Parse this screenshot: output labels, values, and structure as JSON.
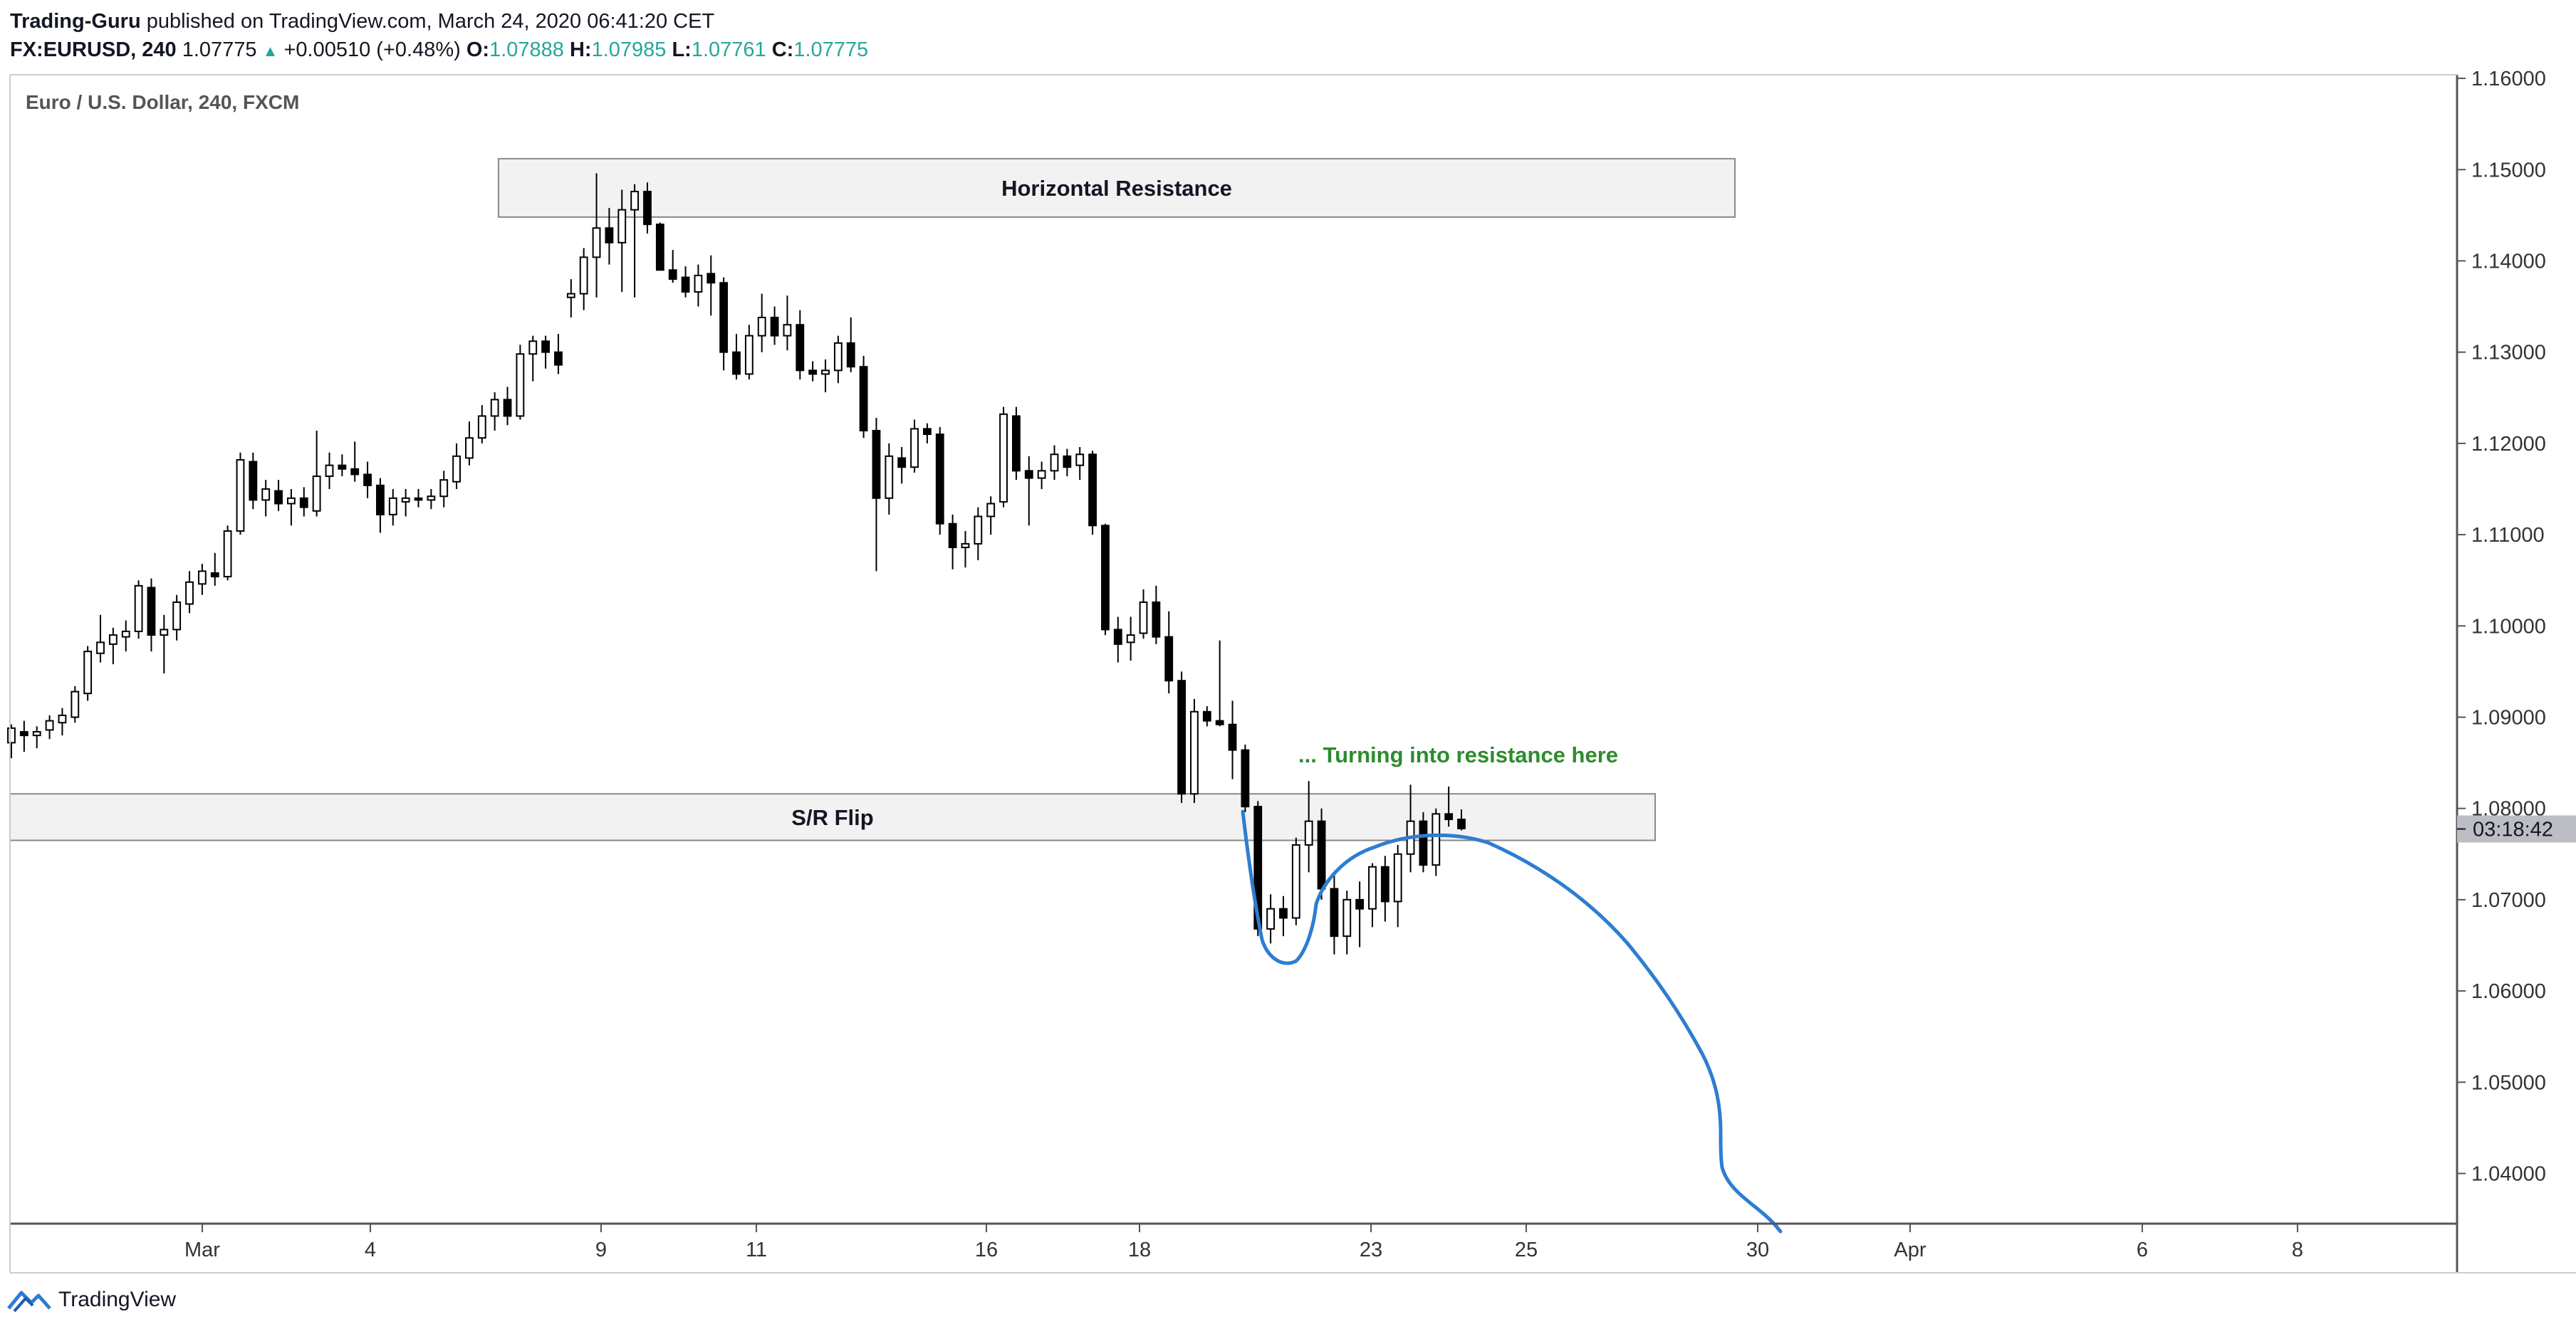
{
  "header": {
    "author": "Trading-Guru",
    "published": " published on TradingView.com, March 24, 2020 06:41:20 CET",
    "symbol": "FX:EURUSD, 240",
    "last": "1.07775",
    "change": "+0.00510 (+0.48%)",
    "o_label": "O:",
    "o_value": "1.07888",
    "h_label": "H:",
    "h_value": "1.07985",
    "l_label": "L:",
    "l_value": "1.07761",
    "c_label": "C:",
    "c_value": "1.07775"
  },
  "footer": {
    "brand": "TradingView"
  },
  "chart_data": {
    "type": "candlestick",
    "title": "Euro / U.S. Dollar, 240, FXCM",
    "ylim": [
      1.0345,
      1.1625
    ],
    "y_ticks": [
      "1.16000",
      "1.15000",
      "1.14000",
      "1.13000",
      "1.12000",
      "1.11000",
      "1.10000",
      "1.09000",
      "1.08000",
      "1.07000",
      "1.06000",
      "1.05000",
      "1.04000"
    ],
    "x_ticks": [
      "Mar",
      "4",
      "9",
      "11",
      "16",
      "18",
      "23",
      "25",
      "30",
      "Apr",
      "6",
      "8"
    ],
    "price_label": "03:18:42",
    "price_label_value": 1.07775,
    "zones": [
      {
        "label": "Horizontal Resistance",
        "y_top": 1.1512,
        "y_bottom": 1.1448
      },
      {
        "label": "S/R Flip",
        "y_top": 1.0816,
        "y_bottom": 1.0765
      }
    ],
    "annotation": {
      "text": "... Turning into resistance here",
      "color": "#2e8b2e"
    },
    "projection_color": "#2d7dd2",
    "ohlc": [
      [
        1.0872,
        1.0892,
        1.0855,
        1.0888
      ],
      [
        1.0884,
        1.0896,
        1.0862,
        1.088
      ],
      [
        1.088,
        1.089,
        1.0866,
        1.0884
      ],
      [
        1.0886,
        1.0902,
        1.0876,
        1.0896
      ],
      [
        1.0894,
        1.091,
        1.088,
        1.0902
      ],
      [
        1.09,
        1.0934,
        1.0894,
        1.0928
      ],
      [
        1.0926,
        1.0978,
        1.0918,
        1.0972
      ],
      [
        1.097,
        1.1012,
        1.096,
        1.0982
      ],
      [
        1.098,
        1.0998,
        1.0958,
        1.099
      ],
      [
        1.0988,
        1.1006,
        1.0972,
        1.0994
      ],
      [
        1.0994,
        1.105,
        1.0986,
        1.1044
      ],
      [
        1.1042,
        1.1052,
        1.0972,
        1.099
      ],
      [
        1.099,
        1.1012,
        1.0948,
        1.0996
      ],
      [
        1.0996,
        1.1034,
        1.0984,
        1.1026
      ],
      [
        1.1024,
        1.106,
        1.1014,
        1.1048
      ],
      [
        1.1046,
        1.1068,
        1.1034,
        1.106
      ],
      [
        1.1058,
        1.108,
        1.1044,
        1.1054
      ],
      [
        1.1054,
        1.111,
        1.105,
        1.1104
      ],
      [
        1.1104,
        1.119,
        1.11,
        1.1182
      ],
      [
        1.118,
        1.119,
        1.1128,
        1.1138
      ],
      [
        1.1138,
        1.116,
        1.112,
        1.115
      ],
      [
        1.1148,
        1.116,
        1.1126,
        1.1134
      ],
      [
        1.1134,
        1.115,
        1.111,
        1.114
      ],
      [
        1.114,
        1.1152,
        1.112,
        1.113
      ],
      [
        1.1126,
        1.1214,
        1.112,
        1.1164
      ],
      [
        1.1164,
        1.119,
        1.115,
        1.1176
      ],
      [
        1.1176,
        1.1188,
        1.1164,
        1.1172
      ],
      [
        1.1172,
        1.1202,
        1.1158,
        1.1166
      ],
      [
        1.1166,
        1.118,
        1.114,
        1.1154
      ],
      [
        1.1154,
        1.1162,
        1.1102,
        1.1122
      ],
      [
        1.1122,
        1.115,
        1.111,
        1.114
      ],
      [
        1.1136,
        1.115,
        1.112,
        1.114
      ],
      [
        1.114,
        1.115,
        1.113,
        1.1138
      ],
      [
        1.1138,
        1.115,
        1.1128,
        1.1142
      ],
      [
        1.1142,
        1.117,
        1.113,
        1.116
      ],
      [
        1.1158,
        1.12,
        1.115,
        1.1186
      ],
      [
        1.1184,
        1.1224,
        1.1176,
        1.1206
      ],
      [
        1.1206,
        1.1242,
        1.12,
        1.123
      ],
      [
        1.123,
        1.1256,
        1.1214,
        1.1248
      ],
      [
        1.1248,
        1.1262,
        1.122,
        1.123
      ],
      [
        1.123,
        1.1308,
        1.1226,
        1.1298
      ],
      [
        1.1298,
        1.1318,
        1.1268,
        1.1312
      ],
      [
        1.1312,
        1.1318,
        1.1282,
        1.13
      ],
      [
        1.13,
        1.132,
        1.1276,
        1.1286
      ],
      [
        1.136,
        1.138,
        1.1338,
        1.1364
      ],
      [
        1.1364,
        1.1414,
        1.1346,
        1.1404
      ],
      [
        1.1404,
        1.1496,
        1.136,
        1.1436
      ],
      [
        1.1436,
        1.1458,
        1.1396,
        1.142
      ],
      [
        1.142,
        1.1478,
        1.1366,
        1.1456
      ],
      [
        1.1456,
        1.1484,
        1.136,
        1.1476
      ],
      [
        1.1476,
        1.1486,
        1.143,
        1.144
      ],
      [
        1.144,
        1.1442,
        1.139,
        1.139
      ],
      [
        1.139,
        1.1412,
        1.1376,
        1.138
      ],
      [
        1.1382,
        1.1394,
        1.136,
        1.1366
      ],
      [
        1.1366,
        1.1396,
        1.135,
        1.1384
      ],
      [
        1.1386,
        1.1406,
        1.134,
        1.1376
      ],
      [
        1.1376,
        1.1382,
        1.128,
        1.13
      ],
      [
        1.13,
        1.132,
        1.127,
        1.1276
      ],
      [
        1.1276,
        1.133,
        1.127,
        1.1318
      ],
      [
        1.1318,
        1.1364,
        1.13,
        1.1338
      ],
      [
        1.1338,
        1.135,
        1.1308,
        1.1318
      ],
      [
        1.1318,
        1.1362,
        1.1302,
        1.133
      ],
      [
        1.133,
        1.1346,
        1.127,
        1.128
      ],
      [
        1.128,
        1.129,
        1.1268,
        1.1276
      ],
      [
        1.1276,
        1.1292,
        1.1256,
        1.128
      ],
      [
        1.128,
        1.1318,
        1.1266,
        1.131
      ],
      [
        1.131,
        1.1338,
        1.1278,
        1.1284
      ],
      [
        1.1284,
        1.1296,
        1.1206,
        1.1214
      ],
      [
        1.1214,
        1.1228,
        1.106,
        1.114
      ],
      [
        1.114,
        1.12,
        1.1122,
        1.1186
      ],
      [
        1.1184,
        1.1196,
        1.1156,
        1.1174
      ],
      [
        1.1174,
        1.1226,
        1.1168,
        1.1216
      ],
      [
        1.1216,
        1.1222,
        1.12,
        1.121
      ],
      [
        1.121,
        1.1218,
        1.11,
        1.1112
      ],
      [
        1.1112,
        1.1122,
        1.1062,
        1.1086
      ],
      [
        1.1086,
        1.1104,
        1.1064,
        1.109
      ],
      [
        1.109,
        1.113,
        1.1072,
        1.112
      ],
      [
        1.112,
        1.1142,
        1.11,
        1.1134
      ],
      [
        1.1136,
        1.124,
        1.113,
        1.1232
      ],
      [
        1.123,
        1.124,
        1.116,
        1.117
      ],
      [
        1.117,
        1.1186,
        1.111,
        1.1162
      ],
      [
        1.1162,
        1.118,
        1.115,
        1.117
      ],
      [
        1.117,
        1.1198,
        1.116,
        1.1188
      ],
      [
        1.1186,
        1.1194,
        1.1164,
        1.1174
      ],
      [
        1.1176,
        1.1196,
        1.116,
        1.1188
      ],
      [
        1.1188,
        1.1192,
        1.11,
        1.111
      ],
      [
        1.111,
        1.1112,
        1.099,
        1.0996
      ],
      [
        1.0996,
        1.101,
        1.096,
        1.098
      ],
      [
        1.0982,
        1.101,
        1.0962,
        1.099
      ],
      [
        1.0992,
        1.104,
        1.0986,
        1.1026
      ],
      [
        1.1026,
        1.1044,
        1.098,
        1.0988
      ],
      [
        1.0988,
        1.1016,
        1.0926,
        1.094
      ],
      [
        1.094,
        1.095,
        1.0806,
        1.0816
      ],
      [
        1.0816,
        1.092,
        1.0806,
        1.0906
      ],
      [
        1.0906,
        1.0912,
        1.089,
        1.0896
      ],
      [
        1.0896,
        1.0984,
        1.089,
        1.0892
      ],
      [
        1.0892,
        1.0918,
        1.0832,
        1.0864
      ],
      [
        1.0864,
        1.087,
        1.0796,
        1.0802
      ],
      [
        1.0802,
        1.0808,
        1.066,
        1.0668
      ],
      [
        1.0668,
        1.0706,
        1.0652,
        1.069
      ],
      [
        1.069,
        1.0704,
        1.066,
        1.068
      ],
      [
        1.068,
        1.0768,
        1.0672,
        1.076
      ],
      [
        1.076,
        1.083,
        1.073,
        1.0786
      ],
      [
        1.0786,
        1.08,
        1.07,
        1.0712
      ],
      [
        1.0712,
        1.073,
        1.064,
        1.066
      ],
      [
        1.066,
        1.071,
        1.064,
        1.07
      ],
      [
        1.07,
        1.072,
        1.0648,
        1.069
      ],
      [
        1.069,
        1.074,
        1.067,
        1.0736
      ],
      [
        1.0736,
        1.0748,
        1.0676,
        1.0698
      ],
      [
        1.0698,
        1.076,
        1.067,
        1.075
      ],
      [
        1.075,
        1.0826,
        1.073,
        1.0786
      ],
      [
        1.0786,
        1.0796,
        1.073,
        1.0738
      ],
      [
        1.0738,
        1.08,
        1.0726,
        1.0794
      ],
      [
        1.0794,
        1.0824,
        1.078,
        1.0788
      ],
      [
        1.0788,
        1.0799,
        1.0776,
        1.0778
      ]
    ]
  }
}
